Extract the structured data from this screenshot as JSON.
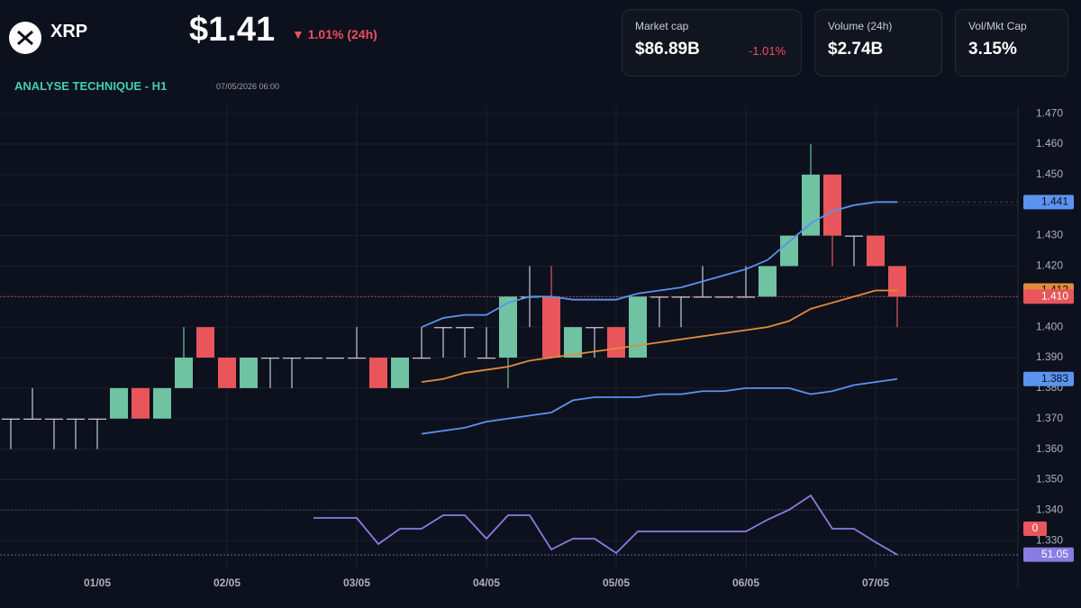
{
  "header": {
    "symbol": "XRP",
    "price": "$1.41",
    "change": "▼ 1.01% (24h)",
    "section": "ANALYSE TECHNIQUE - H1",
    "timestamp": "07/05/2026 06:00"
  },
  "cards": [
    {
      "label": "Market cap",
      "value": "$86.89B",
      "change": "-1.01%"
    },
    {
      "label": "Volume (24h)",
      "value": "$2.74B"
    },
    {
      "label": "Vol/Mkt Cap",
      "value": "3.15%"
    }
  ],
  "chart_data": {
    "type": "candlestick",
    "categories": [
      null,
      null,
      null,
      null,
      "01/05",
      null,
      null,
      null,
      null,
      null,
      "02/05",
      null,
      null,
      null,
      null,
      null,
      "03/05",
      null,
      null,
      null,
      null,
      null,
      "04/05",
      null,
      null,
      null,
      null,
      null,
      "05/05",
      null,
      null,
      null,
      null,
      null,
      "06/05",
      null,
      null,
      null,
      null,
      null,
      "07/05",
      null
    ],
    "open": [
      1.37,
      1.37,
      1.37,
      1.37,
      1.37,
      1.37,
      1.38,
      1.37,
      1.38,
      1.4,
      1.39,
      1.38,
      1.39,
      1.39,
      1.39,
      1.39,
      1.39,
      1.39,
      1.38,
      1.39,
      1.4,
      1.4,
      1.39,
      1.39,
      1.41,
      1.41,
      1.39,
      1.4,
      1.4,
      1.39,
      1.41,
      1.41,
      1.41,
      1.41,
      1.41,
      1.41,
      1.42,
      1.43,
      1.45,
      1.43,
      1.43,
      1.42
    ],
    "high": [
      1.37,
      1.38,
      1.37,
      1.37,
      1.37,
      1.38,
      1.38,
      1.38,
      1.4,
      1.4,
      1.39,
      1.39,
      1.39,
      1.39,
      1.39,
      1.39,
      1.4,
      1.39,
      1.39,
      1.4,
      1.4,
      1.4,
      1.4,
      1.41,
      1.42,
      1.42,
      1.4,
      1.4,
      1.4,
      1.41,
      1.41,
      1.41,
      1.42,
      1.41,
      1.42,
      1.42,
      1.43,
      1.46,
      1.45,
      1.43,
      1.43,
      1.42
    ],
    "low": [
      1.36,
      1.37,
      1.36,
      1.36,
      1.36,
      1.37,
      1.37,
      1.37,
      1.38,
      1.39,
      1.38,
      1.38,
      1.38,
      1.38,
      1.39,
      1.39,
      1.39,
      1.38,
      1.38,
      1.39,
      1.39,
      1.39,
      1.39,
      1.38,
      1.4,
      1.39,
      1.39,
      1.39,
      1.39,
      1.39,
      1.4,
      1.4,
      1.41,
      1.41,
      1.41,
      1.41,
      1.42,
      1.43,
      1.42,
      1.42,
      1.42,
      1.4
    ],
    "close": [
      1.37,
      1.37,
      1.37,
      1.37,
      1.37,
      1.38,
      1.37,
      1.38,
      1.39,
      1.39,
      1.38,
      1.39,
      1.39,
      1.39,
      1.39,
      1.39,
      1.39,
      1.38,
      1.39,
      1.39,
      1.4,
      1.4,
      1.39,
      1.41,
      1.41,
      1.39,
      1.4,
      1.4,
      1.39,
      1.41,
      1.41,
      1.41,
      1.41,
      1.41,
      1.41,
      1.42,
      1.43,
      1.45,
      1.43,
      1.43,
      1.42,
      1.41
    ],
    "up_color": "#6fc2a2",
    "down_color": "#e8565b",
    "flat_color": "#c9cdd6",
    "last_price_label": "1.410",
    "series": [
      {
        "color": "#5b93ee",
        "values": [
          null,
          null,
          null,
          null,
          null,
          null,
          null,
          null,
          null,
          null,
          null,
          null,
          null,
          null,
          null,
          null,
          null,
          null,
          null,
          1.4,
          1.403,
          1.404,
          1.404,
          1.408,
          1.41,
          1.41,
          1.409,
          1.409,
          1.409,
          1.411,
          1.412,
          1.413,
          1.415,
          1.417,
          1.419,
          1.422,
          1.428,
          1.434,
          1.438,
          1.44,
          1.441,
          1.441
        ]
      },
      {
        "color": "#e38b3c",
        "values": [
          null,
          null,
          null,
          null,
          null,
          null,
          null,
          null,
          null,
          null,
          null,
          null,
          null,
          null,
          null,
          null,
          null,
          null,
          null,
          1.382,
          1.383,
          1.385,
          1.386,
          1.387,
          1.389,
          1.39,
          1.391,
          1.392,
          1.393,
          1.394,
          1.395,
          1.396,
          1.397,
          1.398,
          1.399,
          1.4,
          1.402,
          1.406,
          1.408,
          1.41,
          1.412,
          1.412
        ]
      },
      {
        "color": "#5b93ee",
        "values": [
          null,
          null,
          null,
          null,
          null,
          null,
          null,
          null,
          null,
          null,
          null,
          null,
          null,
          null,
          null,
          null,
          null,
          null,
          null,
          1.365,
          1.366,
          1.367,
          1.369,
          1.37,
          1.371,
          1.372,
          1.376,
          1.377,
          1.377,
          1.377,
          1.378,
          1.378,
          1.379,
          1.379,
          1.38,
          1.38,
          1.38,
          1.378,
          1.379,
          1.381,
          1.382,
          1.383
        ]
      },
      {
        "color": "#8a7ce2",
        "axis": "y2",
        "values": [
          null,
          null,
          null,
          null,
          null,
          null,
          null,
          null,
          null,
          null,
          null,
          null,
          null,
          null,
          61.25,
          61.25,
          61.25,
          54,
          58.25,
          58.25,
          62,
          62,
          55.5,
          62,
          62,
          52.5,
          55.5,
          55.5,
          51.5,
          57.5,
          57.5,
          57.5,
          57.5,
          57.5,
          57.5,
          60.75,
          63.5,
          67.5,
          58.25,
          58.25,
          54.5,
          51.05
        ]
      }
    ],
    "indicator_badge": "0",
    "ylim": [
      1.3206,
      1.4724
    ],
    "yticks": [
      {
        "value": 1.47,
        "label": "1.470"
      },
      {
        "value": 1.46,
        "label": "1.460"
      },
      {
        "value": 1.45,
        "label": "1.450"
      },
      {
        "value": 1.44,
        "label": "1.440"
      },
      {
        "value": 1.43,
        "label": "1.430"
      },
      {
        "value": 1.42,
        "label": "1.420"
      },
      {
        "value": 1.41,
        "label": "1.410"
      },
      {
        "value": 1.4,
        "label": "1.400"
      },
      {
        "value": 1.39,
        "label": "1.390"
      },
      {
        "value": 1.38,
        "label": "1.380"
      },
      {
        "value": 1.37,
        "label": "1.370"
      },
      {
        "value": 1.36,
        "label": "1.360"
      },
      {
        "value": 1.35,
        "label": "1.350"
      },
      {
        "value": 1.34,
        "label": "1.340"
      },
      {
        "value": 1.33,
        "label": "1.330"
      }
    ],
    "y2lim": [
      50,
      70
    ],
    "grid": true
  }
}
